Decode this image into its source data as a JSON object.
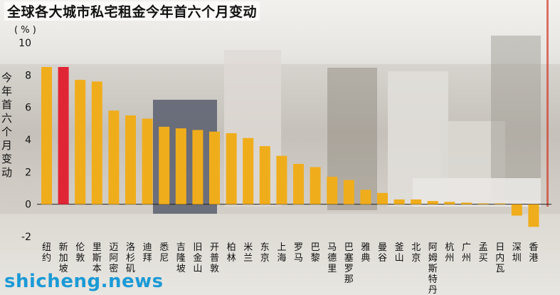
{
  "chart_data": {
    "type": "bar",
    "title": "全球各大城市私宅租金今年首六个月变动",
    "unit_label": "( % )",
    "ylabel": "今年首六个月变动",
    "ylim": [
      -2,
      10
    ],
    "yticks": [
      10,
      8,
      6,
      4,
      2,
      0,
      -2
    ],
    "grid": false,
    "categories": [
      "纽约",
      "新加坡",
      "伦敦",
      "里斯本",
      "迈阿密",
      "洛杉矶",
      "迪拜",
      "悉尼",
      "吉隆坡",
      "旧金山",
      "开普敦",
      "柏林",
      "米兰",
      "东京",
      "上海",
      "罗马",
      "巴黎",
      "马德里",
      "巴塞罗那",
      "雅典",
      "曼谷",
      "釜山",
      "北京",
      "阿姆斯特丹",
      "杭州",
      "广州",
      "孟买",
      "日内瓦",
      "深圳",
      "香港"
    ],
    "values": [
      8.5,
      8.5,
      7.7,
      7.6,
      5.8,
      5.5,
      5.3,
      4.8,
      4.7,
      4.6,
      4.5,
      4.4,
      4.1,
      3.6,
      3.0,
      2.5,
      2.3,
      1.7,
      1.5,
      0.9,
      0.7,
      0.3,
      0.3,
      0.2,
      0.15,
      0.1,
      0.05,
      0.05,
      -0.7,
      -1.4
    ],
    "highlight_category": "新加坡",
    "colors": {
      "bar": "#f0ad1b",
      "highlight": "#e02535"
    }
  },
  "watermark": "shicheng.news"
}
